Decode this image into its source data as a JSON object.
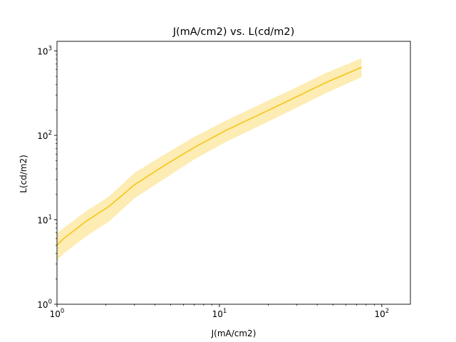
{
  "chart_data": {
    "type": "line",
    "title": "J(mA/cm2) vs. L(cd/m2)",
    "xlabel": "J(mA/cm2)",
    "ylabel": "L(cd/m2)",
    "xscale": "log",
    "yscale": "log",
    "xlim": [
      1,
      150
    ],
    "ylim": [
      1,
      1300
    ],
    "xticks": [
      {
        "base": "10",
        "exp": "0",
        "value": 1
      },
      {
        "base": "10",
        "exp": "1",
        "value": 10
      },
      {
        "base": "10",
        "exp": "2",
        "value": 100
      }
    ],
    "yticks": [
      {
        "base": "10",
        "exp": "0",
        "value": 1
      },
      {
        "base": "10",
        "exp": "1",
        "value": 10
      },
      {
        "base": "10",
        "exp": "2",
        "value": 100
      },
      {
        "base": "10",
        "exp": "3",
        "value": 1000
      }
    ],
    "grid": false,
    "colors": {
      "line": "#f5c518",
      "band": "#fde9a6",
      "axis": "#000000"
    },
    "series": [
      {
        "x": [
          1.0,
          1.1,
          1.5,
          2.1,
          3.0,
          4.5,
          7.0,
          11,
          18,
          28,
          45,
          75
        ],
        "y": [
          5.0,
          6.0,
          9.5,
          14.5,
          26,
          43,
          72,
          115,
          180,
          270,
          420,
          640
        ],
        "y_lower": [
          3.3,
          4.0,
          6.3,
          9.6,
          18,
          30,
          52,
          84,
          132,
          200,
          315,
          490
        ],
        "y_upper": [
          7.0,
          8.0,
          12.5,
          19,
          36,
          58,
          96,
          150,
          235,
          350,
          545,
          820
        ]
      }
    ]
  }
}
